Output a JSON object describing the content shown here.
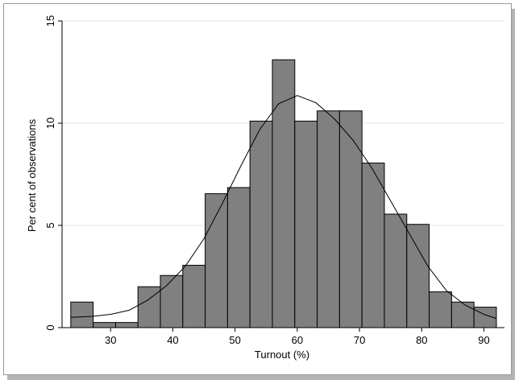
{
  "chart_data": {
    "type": "bar",
    "subtype": "histogram",
    "title": "",
    "xlabel": "Turnout (%)",
    "ylabel": "Per cent of observations",
    "xlim": [
      22.2,
      93.3
    ],
    "ylim": [
      0,
      15
    ],
    "xticks": [
      "30",
      "40",
      "50",
      "60",
      "70",
      "80",
      "90"
    ],
    "yticks": [
      "0",
      "5",
      "10",
      "15"
    ],
    "grid": true,
    "legend": "none",
    "bar_color": "#808080",
    "density_line_color": "#000000",
    "bins": [
      {
        "from": 23.6,
        "to": 27.2,
        "value": 1.25
      },
      {
        "from": 27.2,
        "to": 30.8,
        "value": 0.25
      },
      {
        "from": 30.8,
        "to": 34.4,
        "value": 0.25
      },
      {
        "from": 34.4,
        "to": 38.0,
        "value": 2.0
      },
      {
        "from": 38.0,
        "to": 41.6,
        "value": 2.55
      },
      {
        "from": 41.6,
        "to": 45.2,
        "value": 3.05
      },
      {
        "from": 45.2,
        "to": 48.8,
        "value": 6.55
      },
      {
        "from": 48.8,
        "to": 52.4,
        "value": 6.85
      },
      {
        "from": 52.4,
        "to": 56.0,
        "value": 10.1
      },
      {
        "from": 56.0,
        "to": 59.6,
        "value": 13.1
      },
      {
        "from": 59.6,
        "to": 63.2,
        "value": 10.1
      },
      {
        "from": 63.2,
        "to": 66.8,
        "value": 10.6
      },
      {
        "from": 66.8,
        "to": 70.4,
        "value": 10.6
      },
      {
        "from": 70.4,
        "to": 74.0,
        "value": 8.05
      },
      {
        "from": 74.0,
        "to": 77.6,
        "value": 5.55
      },
      {
        "from": 77.6,
        "to": 81.2,
        "value": 5.05
      },
      {
        "from": 81.2,
        "to": 84.8,
        "value": 1.75
      },
      {
        "from": 84.8,
        "to": 88.4,
        "value": 1.25
      },
      {
        "from": 88.4,
        "to": 92.0,
        "value": 1.0
      }
    ],
    "density": {
      "x": [
        23.6,
        27,
        30,
        33,
        36,
        39,
        42,
        45,
        48,
        51,
        54,
        57,
        60,
        63,
        66,
        69,
        72,
        75,
        78,
        81,
        84,
        87,
        90,
        92
      ],
      "y": [
        0.5,
        0.55,
        0.65,
        0.85,
        1.35,
        2.05,
        3.0,
        4.35,
        6.1,
        7.95,
        9.7,
        10.95,
        11.35,
        11.0,
        10.2,
        9.15,
        7.8,
        6.2,
        4.6,
        3.0,
        1.8,
        1.1,
        0.65,
        0.45
      ]
    }
  }
}
